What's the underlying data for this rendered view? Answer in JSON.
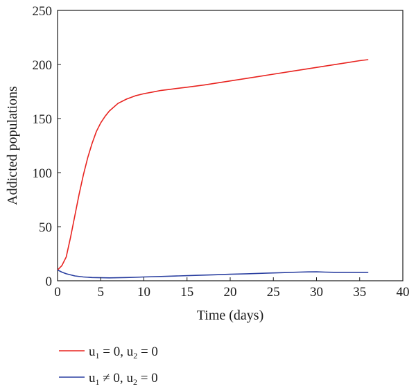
{
  "chart_data": {
    "type": "line",
    "xlabel": "Time (days)",
    "ylabel": "Addicted populations",
    "xlim": [
      0,
      40
    ],
    "ylim": [
      0,
      250
    ],
    "xticks": [
      0,
      5,
      10,
      15,
      20,
      25,
      30,
      35,
      40
    ],
    "yticks": [
      0,
      50,
      100,
      150,
      200,
      250
    ],
    "grid": false,
    "legend_position": "bottom-left, below plot",
    "series": [
      {
        "color": "#e8231f",
        "legend": {
          "u1": "u",
          "s1": "1",
          "rel1": " = 0, ",
          "u2": "u",
          "s2": "2",
          "rel2": " = 0"
        },
        "x": [
          0,
          0.5,
          1,
          1.5,
          2,
          2.5,
          3,
          3.5,
          4,
          4.5,
          5,
          5.5,
          6,
          7,
          8,
          9,
          10,
          11,
          12,
          13,
          14,
          15,
          17,
          19,
          21,
          23,
          25,
          27,
          29,
          31,
          33,
          35,
          36
        ],
        "y": [
          10,
          14,
          22,
          40,
          60,
          80,
          98,
          114,
          127,
          138,
          146,
          152,
          157,
          164,
          168,
          171,
          173,
          174.5,
          176,
          177,
          178,
          179,
          181,
          183.5,
          186,
          188.5,
          191,
          193.5,
          196,
          198.5,
          201,
          203.5,
          204.5
        ]
      },
      {
        "color": "#2a3fa0",
        "legend": {
          "u1": "u",
          "s1": "1",
          "rel1": " ≠ 0, ",
          "u2": "u",
          "s2": "2",
          "rel2": " = 0"
        },
        "x": [
          0,
          0.5,
          1,
          2,
          3,
          4,
          5,
          6,
          7,
          8,
          9,
          10,
          12,
          14,
          16,
          18,
          20,
          22,
          24,
          26,
          28,
          29,
          30,
          31,
          32,
          34,
          36
        ],
        "y": [
          10,
          8,
          6.5,
          4.5,
          3.5,
          3,
          2.8,
          2.7,
          2.8,
          3,
          3.2,
          3.5,
          4,
          4.5,
          5,
          5.5,
          6,
          6.5,
          7,
          7.5,
          8,
          8.2,
          8.3,
          8,
          7.8,
          7.8,
          7.8
        ]
      }
    ]
  }
}
